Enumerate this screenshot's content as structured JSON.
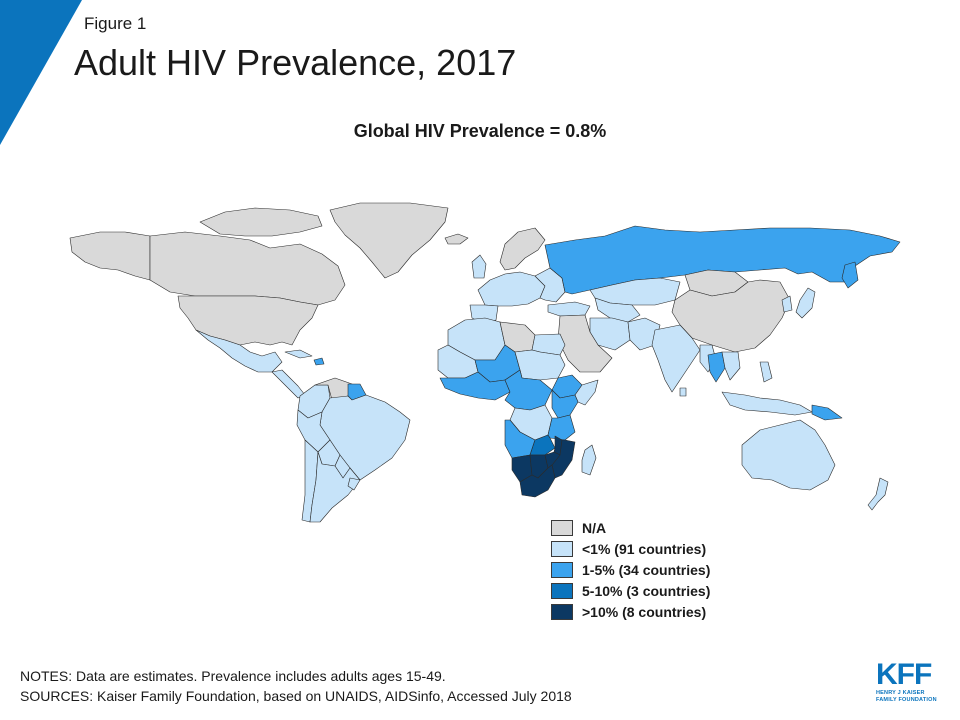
{
  "header": {
    "figure_label": "Figure 1",
    "title": "Adult HIV Prevalence, 2017"
  },
  "map": {
    "subtitle": "Global HIV Prevalence = 0.8%",
    "colors": {
      "na": "#d9d9d9",
      "lt1": "#c6e3f9",
      "p1to5": "#3ba3ee",
      "p5to10": "#0b74bd",
      "gt10": "#0c3862",
      "border": "#2a2a2a"
    }
  },
  "legend": {
    "items": [
      {
        "label": "N/A",
        "color": "#d9d9d9"
      },
      {
        "label": "<1% (91 countries)",
        "color": "#c6e3f9"
      },
      {
        "label": "1-5% (34 countries)",
        "color": "#3ba3ee"
      },
      {
        "label": "5-10% (3 countries)",
        "color": "#0b74bd"
      },
      {
        "label": ">10% (8 countries)",
        "color": "#0c3862"
      }
    ]
  },
  "footer": {
    "notes": "NOTES: Data are estimates. Prevalence includes adults ages 15-49.",
    "sources": "SOURCES: Kaiser Family Foundation, based on UNAIDS, AIDSinfo, Accessed July 2018"
  },
  "logo": {
    "main": "KFF",
    "line1": "HENRY J KAISER",
    "line2": "FAMILY FOUNDATION"
  }
}
